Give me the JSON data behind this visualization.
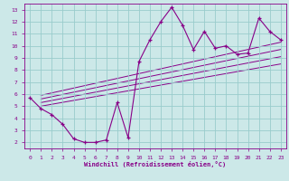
{
  "xlabel": "Windchill (Refroidissement éolien,°C)",
  "bg_color": "#cce8e8",
  "grid_color": "#99cccc",
  "line_color": "#880088",
  "xlim": [
    -0.5,
    23.5
  ],
  "ylim": [
    1.5,
    13.5
  ],
  "xticks": [
    0,
    1,
    2,
    3,
    4,
    5,
    6,
    7,
    8,
    9,
    10,
    11,
    12,
    13,
    14,
    15,
    16,
    17,
    18,
    19,
    20,
    21,
    22,
    23
  ],
  "yticks": [
    2,
    3,
    4,
    5,
    6,
    7,
    8,
    9,
    10,
    11,
    12,
    13
  ],
  "series": [
    [
      0,
      5.7
    ],
    [
      1,
      4.8
    ],
    [
      2,
      4.3
    ],
    [
      3,
      3.5
    ],
    [
      4,
      2.3
    ],
    [
      5,
      2.0
    ],
    [
      6,
      2.0
    ],
    [
      7,
      2.2
    ],
    [
      8,
      5.3
    ],
    [
      9,
      2.4
    ],
    [
      10,
      8.7
    ],
    [
      11,
      10.5
    ],
    [
      12,
      12.0
    ],
    [
      13,
      13.2
    ],
    [
      14,
      11.7
    ],
    [
      15,
      9.7
    ],
    [
      16,
      11.2
    ],
    [
      17,
      9.8
    ],
    [
      18,
      10.0
    ],
    [
      19,
      9.3
    ],
    [
      20,
      9.4
    ],
    [
      21,
      12.3
    ],
    [
      22,
      11.2
    ],
    [
      23,
      10.5
    ]
  ],
  "regression_lines": [
    {
      "x0": 1,
      "y0": 5.9,
      "x1": 23,
      "y1": 10.3
    },
    {
      "x0": 1,
      "y0": 5.6,
      "x1": 23,
      "y1": 9.7
    },
    {
      "x0": 1,
      "y0": 5.3,
      "x1": 23,
      "y1": 9.1
    },
    {
      "x0": 1,
      "y0": 5.0,
      "x1": 23,
      "y1": 8.5
    }
  ]
}
